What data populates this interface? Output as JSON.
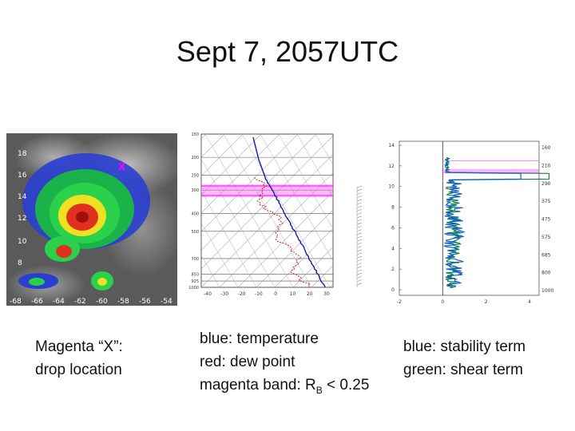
{
  "title": "Sept 7,  2057UTC",
  "satellite": {
    "lat_labels": [
      "18",
      "16",
      "14",
      "12",
      "10",
      "8"
    ],
    "lon_labels": [
      "-68",
      "-66",
      "-64",
      "-62",
      "-60",
      "-58",
      "-56",
      "-54"
    ],
    "caption": [
      "Magenta “X”:",
      "drop location"
    ]
  },
  "sounding": {
    "pressure_labels": [
      "150",
      "200",
      "250",
      "300",
      "400",
      "500",
      "700",
      "850",
      "925",
      "1000"
    ],
    "temperature_labels": [
      "-40",
      "-30",
      "-20",
      "-10",
      "0",
      "10",
      "20",
      "30"
    ],
    "caption": {
      "lines": [
        "blue: temperature",
        "red: dew point"
      ],
      "band_prefix": "magenta band: R",
      "band_subscript": "B",
      "band_suffix": " < 0.25"
    }
  },
  "profile": {
    "height_labels": [
      "0",
      "2",
      "4",
      "6",
      "8",
      "10",
      "12",
      "14"
    ],
    "x_labels": [
      "-2",
      "0",
      "2",
      "4"
    ],
    "pressure_labels": [
      "1000",
      "800",
      "685",
      "575",
      "475",
      "375",
      "290",
      "210",
      "160"
    ],
    "caption": [
      "blue: stability term",
      "green: shear term"
    ]
  }
}
